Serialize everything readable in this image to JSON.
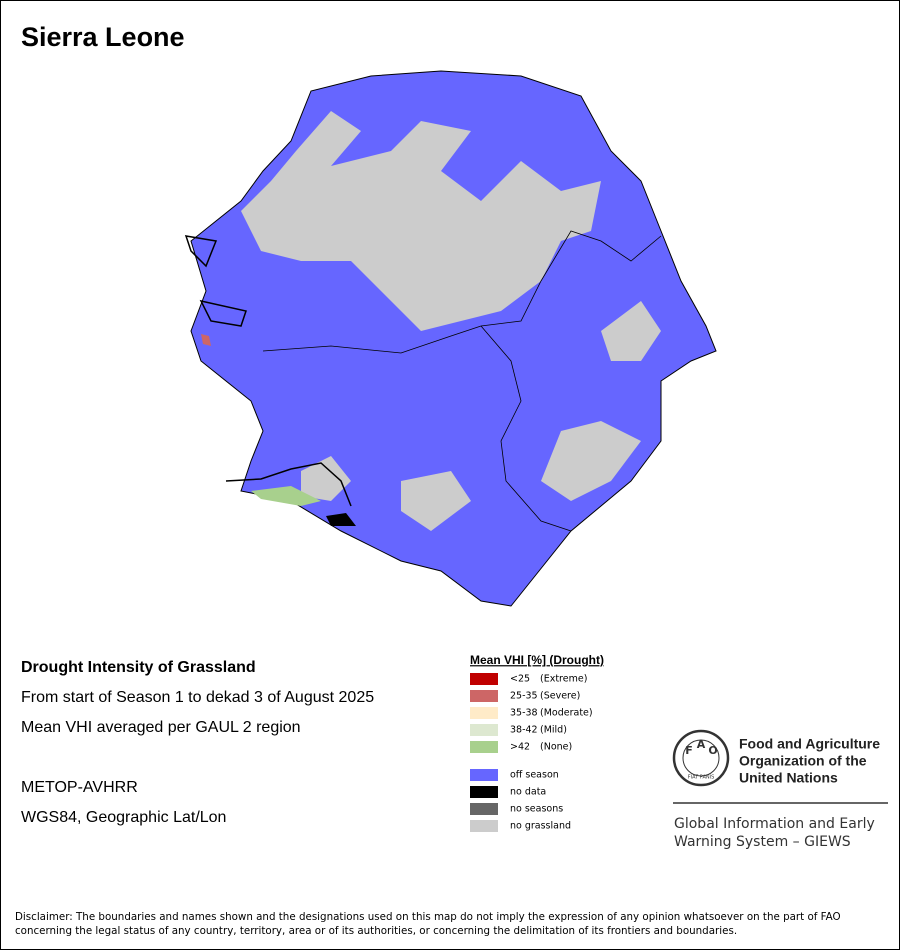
{
  "header": {
    "title": "Sierra Leone"
  },
  "info": {
    "heading": "Drought Intensity of Grassland",
    "lines": [
      "From start of Season 1 to dekad 3 of August 2025",
      "Mean VHI averaged per GAUL 2 region"
    ],
    "sensor": "METOP-AVHRR",
    "projection": "WGS84, Geographic Lat/Lon"
  },
  "legend": {
    "title": "Mean VHI [%] (Drought)",
    "groups": [
      [
        {
          "label": "<25",
          "note": "(Extreme)",
          "color": "#c00000"
        },
        {
          "label": "25-35",
          "note": "(Severe)",
          "color": "#cd6666"
        },
        {
          "label": "35-38",
          "note": "(Moderate)",
          "color": "#ffebc8"
        },
        {
          "label": "38-42",
          "note": "(Mild)",
          "color": "#dde8d0"
        },
        {
          "label": ">42",
          "note": "(None)",
          "color": "#a8d08d"
        }
      ],
      [
        {
          "label": "off season",
          "color": "#6666ff"
        },
        {
          "label": "no data",
          "color": "#000000"
        },
        {
          "label": "no seasons",
          "color": "#666666"
        },
        {
          "label": "no grassland",
          "color": "#cccccc"
        }
      ]
    ]
  },
  "logo": {
    "letters": [
      "F",
      "A",
      "O"
    ],
    "motto": "FIAT PANIS",
    "org": [
      "Food and Agriculture",
      "Organization of the",
      "United Nations"
    ],
    "system": [
      "Global Information and Early",
      "Warning System – GIEWS"
    ]
  },
  "disclaimer": [
    "Disclaimer: The boundaries and names shown and the designations used on this map do not imply the expression of any opinion whatsoever on the part of FAO",
    "concerning the legal status of any country, territory, area or of its authorities, or concerning the delimitation of its frontiers and boundaries."
  ]
}
